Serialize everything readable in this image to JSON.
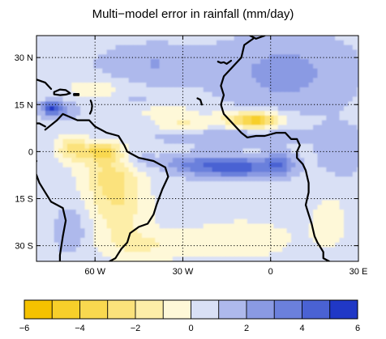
{
  "chart_data": {
    "type": "heatmap",
    "title": "Multi−model error in rainfall (mm/day)",
    "xlabel": "",
    "ylabel": "",
    "xlim": [
      -80,
      30
    ],
    "ylim": [
      -35,
      37
    ],
    "x_ticks": [
      {
        "value": -60,
        "label": "60  W"
      },
      {
        "value": -30,
        "label": "30  W"
      },
      {
        "value": 0,
        "label": "0"
      },
      {
        "value": 30,
        "label": "30  E"
      }
    ],
    "y_ticks": [
      {
        "value": 30,
        "label": "30  N"
      },
      {
        "value": 15,
        "label": "15  N"
      },
      {
        "value": 0,
        "label": "0"
      },
      {
        "value": -15,
        "label": "15  S"
      },
      {
        "value": -30,
        "label": "30  S"
      }
    ],
    "grid": true,
    "colorbar": {
      "levels": [
        -6,
        -5,
        -4,
        -3,
        -2,
        -1,
        0,
        1,
        2,
        3,
        4,
        5,
        6
      ],
      "tick_labels": [
        "−6",
        "−4",
        "−2",
        "0",
        "2",
        "4",
        "6"
      ],
      "tick_values": [
        -6,
        -4,
        -2,
        0,
        2,
        4,
        6
      ],
      "colors": [
        "#f5c200",
        "#f7cf2a",
        "#f9d84f",
        "#fbe27b",
        "#fdeea8",
        "#fef8d8",
        "#d9e0f5",
        "#aeb9ec",
        "#8a9ae3",
        "#6b80dc",
        "#4a62d3",
        "#2038c6"
      ]
    },
    "field_components": [
      {
        "type": "base",
        "value": 0.6
      },
      {
        "type": "blob",
        "lon": -12,
        "lat": -5,
        "dlon": 14,
        "dlat": 3.2,
        "amp": 4.2
      },
      {
        "type": "blob",
        "lon": 3,
        "lat": -4,
        "dlon": 5,
        "dlat": 3.5,
        "amp": 2.4
      },
      {
        "type": "blob",
        "lon": -28,
        "lat": -4,
        "dlon": 9,
        "dlat": 3,
        "amp": 1.8
      },
      {
        "type": "blob",
        "lon": -45,
        "lat": -3,
        "dlon": 6,
        "dlat": 3,
        "amp": 1.2
      },
      {
        "type": "blob",
        "lon": -75,
        "lat": 14,
        "dlon": 3,
        "dlat": 2,
        "amp": 4.0
      },
      {
        "type": "blob",
        "lon": -72,
        "lat": 13,
        "dlon": 6,
        "dlat": 3,
        "amp": 1.5
      },
      {
        "type": "blob",
        "lon": -15,
        "lat": 5,
        "dlon": 25,
        "dlat": 3,
        "amp": 1.3
      },
      {
        "type": "blob",
        "lon": 5,
        "lat": 25,
        "dlon": 22,
        "dlat": 12,
        "amp": 1.8
      },
      {
        "type": "blob",
        "lon": -40,
        "lat": 28,
        "dlon": 18,
        "dlat": 6,
        "amp": 1.4
      },
      {
        "type": "blob",
        "lon": -45,
        "lat": 16,
        "dlon": 10,
        "dlat": 3,
        "amp": 0.6
      },
      {
        "type": "blob",
        "lon": 24,
        "lat": 0,
        "dlon": 8,
        "dlat": 8,
        "amp": 1.2
      },
      {
        "type": "blob",
        "lon": -68,
        "lat": -25,
        "dlon": 6,
        "dlat": 8,
        "amp": 1.2
      },
      {
        "type": "blob",
        "lon": -5,
        "lat": 10,
        "dlon": 7,
        "dlat": 2.5,
        "amp": -3.8
      },
      {
        "type": "blob",
        "lon": -10,
        "lat": 10,
        "dlon": 14,
        "dlat": 3,
        "amp": -2.0
      },
      {
        "type": "blob",
        "lon": -58,
        "lat": 0,
        "dlon": 6,
        "dlat": 3,
        "amp": -3.4
      },
      {
        "type": "blob",
        "lon": -55,
        "lat": -7,
        "dlon": 10,
        "dlat": 8,
        "amp": -2.4
      },
      {
        "type": "blob",
        "lon": -52,
        "lat": -18,
        "dlon": 10,
        "dlat": 10,
        "amp": -2.2
      },
      {
        "type": "blob",
        "lon": -68,
        "lat": 1,
        "dlon": 5,
        "dlat": 4,
        "amp": -2.8
      },
      {
        "type": "blob",
        "lon": -44,
        "lat": -30,
        "dlon": 14,
        "dlat": 5,
        "amp": -1.6
      },
      {
        "type": "blob",
        "lon": -30,
        "lat": 8,
        "dlon": 8,
        "dlat": 2.5,
        "amp": -1.8
      },
      {
        "type": "blob",
        "lon": -60,
        "lat": 20,
        "dlon": 9,
        "dlat": 3,
        "amp": -1.5
      },
      {
        "type": "blob",
        "lon": -37,
        "lat": 13,
        "dlon": 10,
        "dlat": 3,
        "amp": -1.2
      },
      {
        "type": "blob",
        "lon": -10,
        "lat": -28,
        "dlon": 20,
        "dlat": 7,
        "amp": -1.2
      },
      {
        "type": "blob",
        "lon": 20,
        "lat": -22,
        "dlon": 7,
        "dlat": 10,
        "amp": -1.0
      }
    ],
    "coastlines": {
      "south_america": [
        [
          -77,
          7
        ],
        [
          -73,
          10
        ],
        [
          -71,
          12
        ],
        [
          -66,
          10
        ],
        [
          -62,
          10
        ],
        [
          -60,
          8
        ],
        [
          -56,
          6
        ],
        [
          -52,
          5
        ],
        [
          -50,
          2
        ],
        [
          -49,
          0
        ],
        [
          -45,
          -2
        ],
        [
          -40,
          -3
        ],
        [
          -36,
          -5
        ],
        [
          -35,
          -8
        ],
        [
          -37,
          -12
        ],
        [
          -39,
          -17
        ],
        [
          -40,
          -20
        ],
        [
          -42,
          -23
        ],
        [
          -45,
          -24
        ],
        [
          -48,
          -26
        ],
        [
          -49,
          -29
        ],
        [
          -51,
          -31
        ],
        [
          -53,
          -34
        ],
        [
          -55,
          -35
        ]
      ],
      "south_america_west": [
        [
          -80,
          -3
        ],
        [
          -81,
          -5
        ],
        [
          -79,
          -10
        ],
        [
          -77,
          -13
        ],
        [
          -75,
          -16
        ],
        [
          -71,
          -18
        ],
        [
          -70,
          -22
        ],
        [
          -71,
          -27
        ],
        [
          -72,
          -33
        ],
        [
          -72,
          -35
        ]
      ],
      "central_america": [
        [
          -80,
          9
        ],
        [
          -79,
          9
        ],
        [
          -77,
          8
        ]
      ],
      "africa": [
        [
          -6,
          36
        ],
        [
          -9,
          34
        ],
        [
          -10,
          30
        ],
        [
          -13,
          27
        ],
        [
          -16,
          24
        ],
        [
          -17,
          21
        ],
        [
          -16,
          18
        ],
        [
          -17,
          15
        ],
        [
          -16,
          12
        ],
        [
          -13,
          9
        ],
        [
          -12,
          8
        ],
        [
          -10,
          6
        ],
        [
          -8,
          4.5
        ],
        [
          -5,
          5
        ],
        [
          -2,
          5
        ],
        [
          2,
          6
        ],
        [
          5,
          6
        ],
        [
          7,
          4
        ],
        [
          9,
          4
        ],
        [
          10,
          2
        ],
        [
          9,
          0
        ],
        [
          9,
          -2
        ],
        [
          11,
          -4
        ],
        [
          12,
          -6
        ],
        [
          13,
          -10
        ],
        [
          13,
          -13
        ],
        [
          12,
          -17
        ],
        [
          13,
          -20
        ],
        [
          14,
          -23
        ],
        [
          15,
          -27
        ],
        [
          16,
          -29
        ],
        [
          18,
          -32
        ],
        [
          18,
          -34
        ],
        [
          20,
          -35
        ]
      ],
      "europe": [
        [
          -9,
          43
        ],
        [
          -9,
          38
        ],
        [
          -7,
          37
        ],
        [
          -5,
          36
        ],
        [
          -2,
          37
        ]
      ],
      "cuba": [
        [
          -84,
          22
        ],
        [
          -80,
          23
        ],
        [
          -77,
          22
        ],
        [
          -75,
          20
        ]
      ],
      "hispaniola": [
        [
          -74,
          19
        ],
        [
          -72,
          19.8
        ],
        [
          -70,
          19.6
        ],
        [
          -68.5,
          18.6
        ],
        [
          -70,
          18.2
        ],
        [
          -72,
          18
        ],
        [
          -74,
          18.3
        ],
        [
          -74,
          19
        ]
      ],
      "puerto_rico": [
        [
          -67.2,
          18.4
        ],
        [
          -65.6,
          18.4
        ],
        [
          -65.6,
          18
        ],
        [
          -67.2,
          18
        ],
        [
          -67.2,
          18.4
        ]
      ],
      "lesser_antilles": [
        [
          -61.5,
          16.3
        ],
        [
          -61.2,
          15.5
        ],
        [
          -61,
          14.5
        ],
        [
          -61.2,
          13.2
        ],
        [
          -61.7,
          12.1
        ]
      ],
      "cape_verde": [
        [
          -25,
          17
        ],
        [
          -24,
          16.5
        ],
        [
          -23.5,
          15
        ]
      ],
      "canaries": [
        [
          -18,
          28.7
        ],
        [
          -17,
          28.3
        ],
        [
          -16,
          28.5
        ],
        [
          -15,
          28
        ],
        [
          -13.5,
          29
        ]
      ]
    }
  }
}
